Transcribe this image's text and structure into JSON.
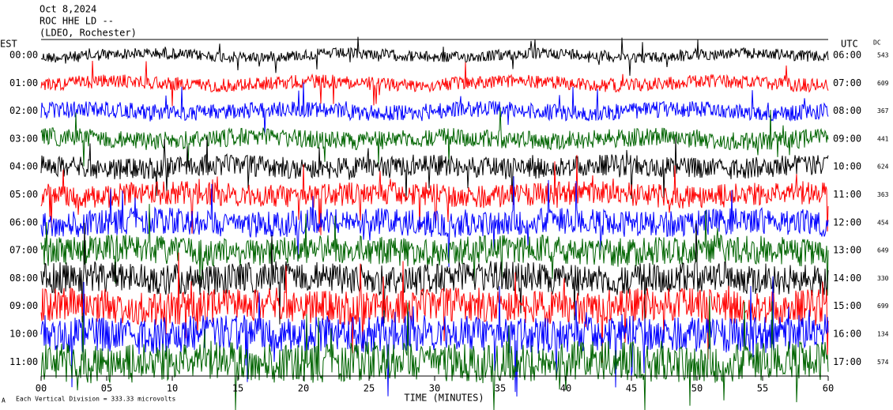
{
  "header": {
    "lines": [
      "Oct 8,2024",
      "ROC HHE LD --",
      "(LDEO, Rochester)"
    ]
  },
  "left_label": "EST",
  "right_label": "UTC",
  "dc_label": "DC",
  "rows": [
    {
      "est": "00:00",
      "utc": "06:00",
      "dc": "543",
      "color": "#000000"
    },
    {
      "est": "01:00",
      "utc": "07:00",
      "dc": "609",
      "color": "#ff0000"
    },
    {
      "est": "02:00",
      "utc": "08:00",
      "dc": "367",
      "color": "#0000ff"
    },
    {
      "est": "03:00",
      "utc": "09:00",
      "dc": "441",
      "color": "#006400"
    },
    {
      "est": "04:00",
      "utc": "10:00",
      "dc": "624",
      "color": "#000000"
    },
    {
      "est": "05:00",
      "utc": "11:00",
      "dc": "363",
      "color": "#ff0000"
    },
    {
      "est": "06:00",
      "utc": "12:00",
      "dc": "454",
      "color": "#0000ff"
    },
    {
      "est": "07:00",
      "utc": "13:00",
      "dc": "649",
      "color": "#006400"
    },
    {
      "est": "08:00",
      "utc": "14:00",
      "dc": "330",
      "color": "#000000"
    },
    {
      "est": "09:00",
      "utc": "15:00",
      "dc": "699",
      "color": "#ff0000"
    },
    {
      "est": "10:00",
      "utc": "16:00",
      "dc": "134",
      "color": "#0000ff"
    },
    {
      "est": "11:00",
      "utc": "17:00",
      "dc": "574",
      "color": "#006400"
    }
  ],
  "x_axis": {
    "labels": [
      "00",
      "05",
      "10",
      "15",
      "20",
      "25",
      "30",
      "35",
      "40",
      "45",
      "50",
      "55",
      "60"
    ],
    "title": "TIME (MINUTES)"
  },
  "footer": {
    "mark": "A",
    "text": "Each Vertical Division = 333.33 microvolts"
  }
}
